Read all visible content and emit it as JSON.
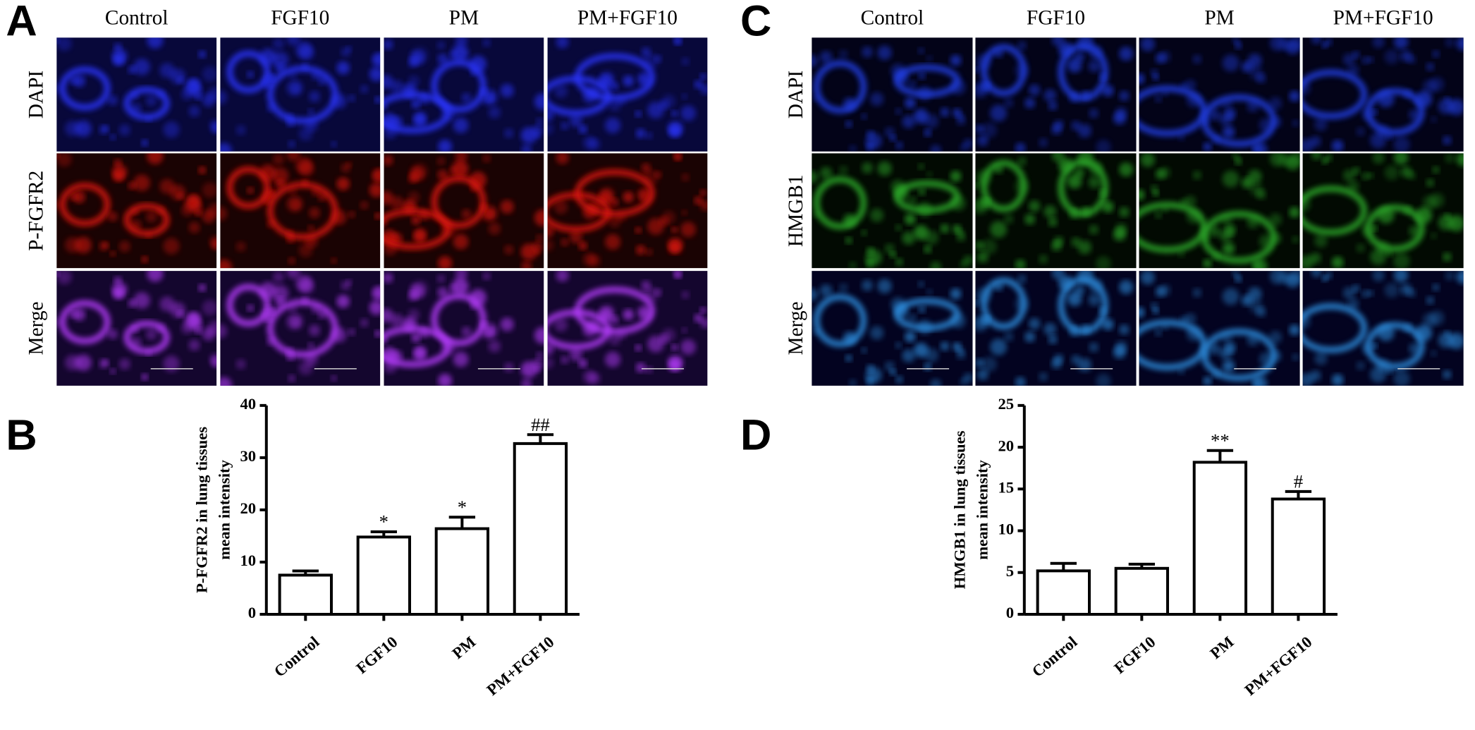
{
  "image_panels": [
    {
      "label": "A",
      "columns": [
        "Control",
        "FGF10",
        "PM",
        "PM+FGF10"
      ],
      "rows": [
        "DAPI",
        "P-FGFR2",
        "Merge"
      ]
    },
    {
      "label": "C",
      "columns": [
        "Control",
        "FGF10",
        "PM",
        "PM+FGF10"
      ],
      "rows": [
        "DAPI",
        "HMGB1",
        "Merge"
      ]
    }
  ],
  "chart_data": [
    {
      "type": "bar",
      "panel_label": "B",
      "ylabel": [
        "P-FGFR2 in lung tissues",
        "mean intensity"
      ],
      "categories": [
        "Control",
        "FGF10",
        "PM",
        "PM+FGF10"
      ],
      "values": [
        7.5,
        14.8,
        16.4,
        32.7
      ],
      "errors": [
        0.8,
        1.0,
        2.2,
        1.7
      ],
      "annotations": [
        null,
        "*",
        "*",
        "##"
      ],
      "color": "#ffffff",
      "ylim": [
        0,
        40
      ],
      "yticks": [
        0,
        10,
        20,
        30,
        40
      ]
    },
    {
      "type": "bar",
      "panel_label": "D",
      "ylabel": [
        "HMGB1 in lung tissues",
        "mean intensity"
      ],
      "categories": [
        "Control",
        "FGF10",
        "PM",
        "PM+FGF10"
      ],
      "values": [
        5.2,
        5.5,
        18.2,
        13.8
      ],
      "errors": [
        0.9,
        0.5,
        1.4,
        0.9
      ],
      "annotations": [
        null,
        null,
        "**",
        "#"
      ],
      "color": "#ffffff",
      "ylim": [
        0,
        25
      ],
      "yticks": [
        0,
        5,
        10,
        15,
        20,
        25
      ]
    }
  ]
}
